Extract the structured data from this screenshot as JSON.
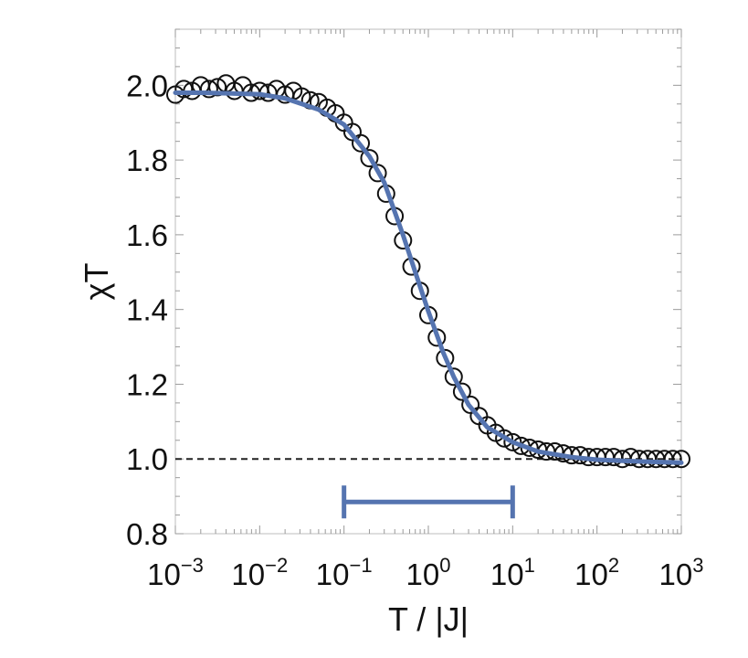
{
  "chart_data": {
    "type": "scatter",
    "title": "",
    "xlabel": "T / |J|",
    "ylabel": "χT",
    "x_scale": "log",
    "xlim": [
      0.001,
      1000
    ],
    "ylim": [
      0.8,
      2.15
    ],
    "x_ticks": [
      {
        "base": "10",
        "exp": "−3"
      },
      {
        "base": "10",
        "exp": "−2"
      },
      {
        "base": "10",
        "exp": "−1"
      },
      {
        "base": "10",
        "exp": "0"
      },
      {
        "base": "10",
        "exp": "1"
      },
      {
        "base": "10",
        "exp": "2"
      },
      {
        "base": "10",
        "exp": "3"
      }
    ],
    "y_ticks": [
      "0.8",
      "1.0",
      "1.2",
      "1.4",
      "1.6",
      "1.8",
      "2.0"
    ],
    "grid": false,
    "reference_line": {
      "y": 1.0,
      "style": "dashed",
      "color": "#222222"
    },
    "interval_bar": {
      "x": [
        0.1,
        10
      ],
      "y": 0.885,
      "color": "#5574b0"
    },
    "series": [
      {
        "kind": "markers",
        "marker": "open-circle",
        "color": "#111111",
        "x": [
          0.001,
          0.00126,
          0.00158,
          0.002,
          0.00251,
          0.00316,
          0.00398,
          0.00501,
          0.00631,
          0.00794,
          0.01,
          0.0126,
          0.0158,
          0.02,
          0.0251,
          0.0316,
          0.0398,
          0.0501,
          0.0631,
          0.0794,
          0.1,
          0.126,
          0.158,
          0.2,
          0.251,
          0.316,
          0.398,
          0.501,
          0.631,
          0.794,
          1,
          1.26,
          1.58,
          2,
          2.51,
          3.16,
          3.98,
          5.01,
          6.31,
          7.94,
          10,
          12.6,
          15.8,
          20,
          25.1,
          31.6,
          39.8,
          50.1,
          63.1,
          79.4,
          100,
          126,
          158,
          200,
          251,
          316,
          398,
          501,
          631,
          794,
          1000
        ],
        "y": [
          1.975,
          1.99,
          1.985,
          2.0,
          1.99,
          1.995,
          2.005,
          1.985,
          2.0,
          1.98,
          1.985,
          1.98,
          1.99,
          1.975,
          1.985,
          1.97,
          1.96,
          1.955,
          1.94,
          1.925,
          1.9,
          1.875,
          1.845,
          1.805,
          1.765,
          1.71,
          1.65,
          1.585,
          1.515,
          1.45,
          1.385,
          1.325,
          1.27,
          1.22,
          1.18,
          1.145,
          1.115,
          1.09,
          1.07,
          1.055,
          1.045,
          1.035,
          1.03,
          1.025,
          1.02,
          1.02,
          1.015,
          1.01,
          1.01,
          1.005,
          1.005,
          1.005,
          1.005,
          1.0,
          1.005,
          1.0,
          1.0,
          1.0,
          1.0,
          1.0,
          1.0
        ]
      },
      {
        "kind": "line",
        "color": "#5574b0",
        "x": [
          0.001,
          0.002,
          0.005,
          0.01,
          0.02,
          0.05,
          0.1,
          0.2,
          0.3,
          0.5,
          0.7,
          1,
          1.5,
          2,
          3,
          5,
          10,
          20,
          50,
          100,
          200,
          500,
          1000
        ],
        "y": [
          1.98,
          1.98,
          1.978,
          1.976,
          1.965,
          1.935,
          1.895,
          1.81,
          1.74,
          1.6,
          1.5,
          1.395,
          1.285,
          1.22,
          1.145,
          1.085,
          1.045,
          1.02,
          1.005,
          0.998,
          0.995,
          0.992,
          0.99
        ]
      }
    ]
  }
}
